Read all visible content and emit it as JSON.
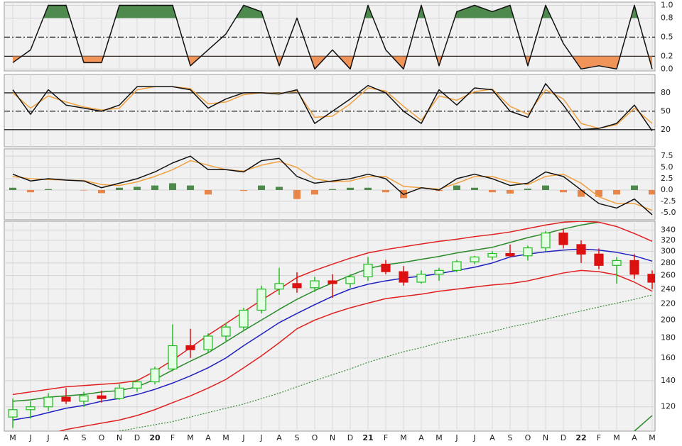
{
  "chart_data": [
    {
      "type": "line",
      "ylim": [
        -0.03,
        1.05
      ],
      "yticks": [
        {
          "value": 1,
          "label": "1.0"
        },
        0.8,
        0.5,
        0.2,
        {
          "value": 0,
          "label": "0.0"
        }
      ],
      "tick_lines": [
        "grid",
        "grid",
        "dashdot",
        "solid",
        "grid"
      ],
      "fill_above_tick": 1,
      "fill_above_color": "#4e8a4e",
      "fill_below_tick": 3,
      "fill_below_color": "#f0945a",
      "series": [
        {
          "color": "#111111",
          "values": [
            0.1,
            0.3,
            1.0,
            1.0,
            0.1,
            0.1,
            1.0,
            1.0,
            1.0,
            1.0,
            0.05,
            0.3,
            0.55,
            1.0,
            0.9,
            0.05,
            0.8,
            0.0,
            0.3,
            0.0,
            1.0,
            0.3,
            0.0,
            1.0,
            0.05,
            0.9,
            1.0,
            0.9,
            1.0,
            0.05,
            1.0,
            0.4,
            0.0,
            0.05,
            0.0,
            1.0,
            0.0
          ]
        }
      ]
    },
    {
      "type": "line",
      "ylim": [
        -8,
        110
      ],
      "yticks": [
        80,
        50,
        20
      ],
      "tick_lines": [
        "solid",
        "dashdot",
        "solid"
      ],
      "series": [
        {
          "color": "#f0a040",
          "values": [
            80,
            55,
            75,
            65,
            57,
            52,
            55,
            85,
            90,
            90,
            87,
            62,
            65,
            77,
            80,
            79,
            83,
            40,
            42,
            62,
            88,
            83,
            58,
            35,
            75,
            68,
            82,
            86,
            58,
            45,
            85,
            70,
            30,
            22,
            28,
            55,
            30
          ]
        },
        {
          "color": "#111111",
          "values": [
            85,
            45,
            85,
            60,
            55,
            50,
            60,
            90,
            90,
            90,
            85,
            55,
            70,
            80,
            80,
            78,
            85,
            30,
            50,
            70,
            92,
            80,
            50,
            30,
            85,
            60,
            88,
            85,
            50,
            40,
            95,
            60,
            20,
            22,
            30,
            60,
            18
          ]
        }
      ]
    },
    {
      "type": "line",
      "ylim": [
        -6.6,
        9.1
      ],
      "yticks": [
        7.5,
        {
          "value": 5,
          "label": "5.0"
        },
        2.5,
        {
          "value": 0,
          "label": "0.0"
        },
        -2.5,
        {
          "value": -5,
          "label": "-5.0"
        }
      ],
      "tick_lines": [
        "grid",
        "grid",
        "grid",
        "grid",
        "grid",
        "grid"
      ],
      "series": [
        {
          "style": "bar",
          "color": "#4e8a4e",
          "color_negative": "#e8864a",
          "values": [
            0.5,
            -0.5,
            0.2,
            0,
            -0.1,
            -0.7,
            0.5,
            0.7,
            1.0,
            1.5,
            1.0,
            -1.0,
            0,
            -0.2,
            1.0,
            0.7,
            -2.0,
            -1.0,
            0.2,
            0.5,
            0.5,
            -0.5,
            -1.8,
            0,
            -0.2,
            1.0,
            0.5,
            -0.5,
            -0.8,
            0.3,
            1.0,
            -0.5,
            -1.5,
            -1.5,
            -1.0,
            1.0,
            -1.0
          ]
        },
        {
          "color": "#f0a040",
          "values": [
            3.0,
            2.5,
            2.3,
            2.2,
            2.1,
            1.2,
            1.0,
            1.8,
            3.0,
            4.5,
            6.5,
            5.5,
            4.5,
            4.2,
            5.5,
            6.3,
            5.0,
            2.5,
            1.8,
            2.0,
            3.0,
            3.0,
            0.8,
            0.5,
            0.2,
            1.5,
            3.0,
            3.0,
            1.8,
            1.2,
            3.0,
            3.5,
            1.5,
            -1.5,
            -3.0,
            -3.0,
            -4.5
          ]
        },
        {
          "color": "#111111",
          "values": [
            3.5,
            2.0,
            2.5,
            2.2,
            2.0,
            0.5,
            1.5,
            2.5,
            4.0,
            6.0,
            7.5,
            4.5,
            4.5,
            4.0,
            6.5,
            7.0,
            3.0,
            1.5,
            2.0,
            2.5,
            3.5,
            2.5,
            -1.0,
            0.5,
            0.0,
            2.5,
            3.5,
            2.5,
            1.0,
            1.5,
            4.0,
            3.0,
            0.0,
            -3.0,
            -4.0,
            -2.0,
            -5.5
          ]
        }
      ]
    },
    {
      "type": "candlestick",
      "log": true,
      "grid": true,
      "ylim": [
        104,
        358
      ],
      "yticks": [
        120,
        140,
        160,
        180,
        200,
        220,
        240,
        260,
        280,
        300,
        320,
        340
      ],
      "categories": [
        "M",
        "J",
        "J",
        "A",
        "S",
        "O",
        "N",
        "D",
        "20",
        "F",
        "M",
        "A",
        "M",
        "J",
        "J",
        "A",
        "S",
        "O",
        "N",
        "D",
        "21",
        "F",
        "M",
        "A",
        "M",
        "J",
        "J",
        "A",
        "S",
        "O",
        "N",
        "D",
        "22",
        "F",
        "M",
        "A",
        "M"
      ],
      "up_color": "#22bb22",
      "down_color": "#dd1111",
      "open": [
        113,
        118,
        120,
        127,
        124,
        128,
        126,
        134,
        139,
        150,
        172,
        168,
        182,
        192,
        212,
        240,
        248,
        242,
        252,
        248,
        258,
        278,
        266,
        250,
        262,
        268,
        282,
        290,
        296,
        292,
        306,
        334,
        312,
        295,
        276,
        284,
        262
      ],
      "high": [
        126,
        124,
        130,
        134,
        131,
        132,
        137,
        141,
        152,
        195,
        190,
        185,
        197,
        215,
        245,
        272,
        265,
        258,
        262,
        262,
        290,
        285,
        275,
        268,
        272,
        285,
        292,
        300,
        312,
        310,
        338,
        342,
        320,
        305,
        290,
        295,
        268
      ],
      "low": [
        106,
        112,
        117,
        122,
        120,
        123,
        125,
        131,
        137,
        148,
        160,
        165,
        176,
        188,
        208,
        232,
        235,
        236,
        228,
        242,
        252,
        262,
        245,
        248,
        252,
        265,
        278,
        285,
        290,
        284,
        300,
        305,
        280,
        270,
        248,
        255,
        240
      ],
      "close": [
        118,
        120,
        127,
        124,
        128,
        126,
        134,
        139,
        150,
        172,
        168,
        182,
        192,
        212,
        240,
        248,
        242,
        252,
        248,
        258,
        278,
        266,
        250,
        262,
        268,
        282,
        290,
        296,
        292,
        306,
        334,
        312,
        295,
        276,
        284,
        262,
        250
      ],
      "series": [
        {
          "color": "#3a8a3a",
          "style": "dotted",
          "values": [
            null,
            null,
            null,
            null,
            null,
            null,
            104,
            106,
            108,
            110,
            113,
            116,
            119,
            122,
            126,
            130,
            135,
            140,
            145,
            150,
            156,
            161,
            166,
            170,
            175,
            179,
            183,
            187,
            192,
            196,
            201,
            206,
            211,
            216,
            221,
            226,
            232
          ]
        },
        {
          "color": "#2a8a2a",
          "values": [
            null,
            null,
            null,
            null,
            null,
            null,
            null,
            null,
            null,
            null,
            null,
            null,
            null,
            null,
            null,
            null,
            null,
            null,
            null,
            null,
            null,
            null,
            null,
            null,
            null,
            null,
            null,
            null,
            null,
            null,
            null,
            null,
            null,
            null,
            null,
            104,
            114
          ]
        },
        {
          "color": "#e02020",
          "values": [
            98,
            100,
            102,
            105,
            107,
            109,
            111,
            114,
            118,
            123,
            128,
            134,
            141,
            151,
            162,
            175,
            190,
            200,
            208,
            215,
            221,
            227,
            230,
            233,
            237,
            240,
            243,
            246,
            248,
            252,
            258,
            264,
            268,
            266,
            261,
            250,
            237
          ]
        },
        {
          "color": "#2020c0",
          "values": [
            111,
            113,
            116,
            119,
            121,
            124,
            126,
            129,
            133,
            138,
            144,
            151,
            160,
            172,
            184,
            197,
            208,
            219,
            230,
            240,
            247,
            252,
            256,
            259,
            263,
            268,
            273,
            280,
            290,
            295,
            299,
            302,
            304,
            302,
            298,
            292,
            283
          ]
        },
        {
          "color": "#2a8a2a",
          "values": [
            124,
            125,
            127,
            128,
            129,
            131,
            132,
            135,
            141,
            149,
            157,
            165,
            176,
            188,
            200,
            213,
            226,
            238,
            249,
            260,
            271,
            277,
            281,
            286,
            291,
            297,
            302,
            307,
            316,
            325,
            333,
            342,
            350,
            356,
            null,
            null,
            null
          ]
        },
        {
          "color": "#e02020",
          "values": [
            129,
            131,
            133,
            135,
            136,
            137,
            138,
            140,
            148,
            158,
            170,
            183,
            196,
            210,
            225,
            240,
            257,
            268,
            278,
            288,
            297,
            303,
            308,
            313,
            318,
            322,
            327,
            331,
            336,
            343,
            350,
            356,
            358,
            356,
            347,
            333,
            318
          ]
        }
      ]
    }
  ]
}
